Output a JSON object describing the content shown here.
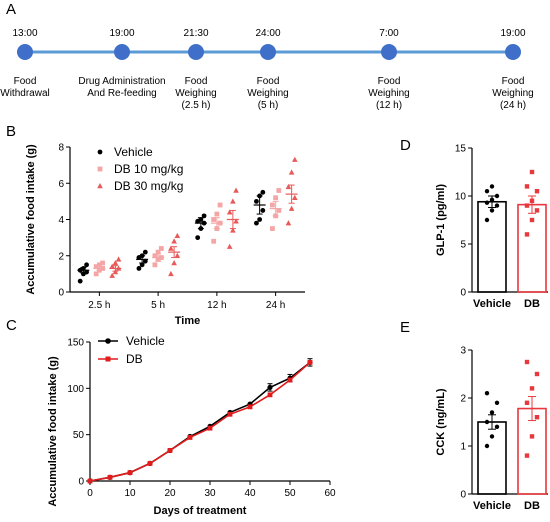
{
  "panels": {
    "A": "A",
    "B": "B",
    "C": "C",
    "D": "D",
    "E": "E"
  },
  "timeline": {
    "events": [
      {
        "time": "13:00",
        "lines": [
          "Food",
          "Withdrawal"
        ]
      },
      {
        "time": "19:00",
        "lines": [
          "Drug Administration",
          "And Re-feeding"
        ]
      },
      {
        "time": "21:30",
        "lines": [
          "Food",
          "Weighing",
          "(2.5 h)"
        ]
      },
      {
        "time": "24:00",
        "lines": [
          "Food",
          "Weighing",
          "(5 h)"
        ]
      },
      {
        "time": "7:00",
        "lines": [
          "Food",
          "Weighing",
          "(12 h)"
        ]
      },
      {
        "time": "19:00",
        "lines": [
          "Food",
          "Weighing",
          "(24 h)"
        ]
      }
    ],
    "colors": {
      "line": "#5b9bd5",
      "node": "#3f6fc8"
    }
  },
  "chart_data": [
    {
      "type": "scatter",
      "panel": "B",
      "ylabel": "Accumulative food intake (g)",
      "xlabel": "Time",
      "categories": [
        "2.5 h",
        "5 h",
        "12 h",
        "24 h"
      ],
      "ylim": [
        0,
        8
      ],
      "yticks": [
        0,
        2,
        4,
        6,
        8
      ],
      "legend_position": "top-left",
      "series": [
        {
          "name": "Vehicle",
          "color": "#000000",
          "marker": "circle",
          "means": [
            1.2,
            1.8,
            3.8,
            4.8
          ],
          "sem": [
            0.15,
            0.2,
            0.3,
            0.5
          ],
          "points": [
            [
              0.6,
              1.0,
              1.1,
              1.2,
              1.3,
              1.5
            ],
            [
              1.3,
              1.5,
              1.7,
              1.9,
              2.0,
              2.2
            ],
            [
              3.0,
              3.5,
              3.8,
              3.9,
              4.0,
              4.2
            ],
            [
              3.8,
              4.0,
              4.5,
              5.0,
              5.3,
              5.5
            ]
          ]
        },
        {
          "name": "DB 10 mg/kg",
          "color": "#f4a6a6",
          "marker": "square",
          "means": [
            1.3,
            1.9,
            3.8,
            4.6
          ],
          "sem": [
            0.1,
            0.2,
            0.3,
            0.4
          ],
          "points": [
            [
              1.0,
              1.2,
              1.3,
              1.4,
              1.5,
              1.6
            ],
            [
              1.5,
              1.8,
              1.9,
              2.0,
              2.2,
              2.4
            ],
            [
              2.8,
              3.5,
              3.8,
              4.0,
              4.3,
              4.8
            ],
            [
              3.5,
              4.2,
              4.5,
              4.8,
              5.2,
              5.6
            ]
          ]
        },
        {
          "name": "DB 30 mg/kg",
          "color": "#e85a5a",
          "marker": "triangle",
          "means": [
            1.3,
            2.2,
            4.0,
            5.4
          ],
          "sem": [
            0.15,
            0.3,
            0.5,
            0.5
          ],
          "points": [
            [
              0.9,
              1.1,
              1.3,
              1.4,
              1.6,
              1.8
            ],
            [
              1.0,
              1.6,
              2.0,
              2.4,
              2.8,
              3.1
            ],
            [
              2.5,
              3.4,
              3.9,
              4.4,
              5.0,
              5.6
            ],
            [
              3.8,
              4.6,
              5.2,
              5.8,
              6.6,
              7.3
            ]
          ]
        }
      ]
    },
    {
      "type": "line",
      "panel": "C",
      "ylabel": "Accumulative food intake (g)",
      "xlabel": "Days of treatment",
      "xlim": [
        0,
        60
      ],
      "ylim": [
        0,
        150
      ],
      "xticks": [
        0,
        10,
        20,
        30,
        40,
        50,
        60
      ],
      "yticks": [
        0,
        50,
        100,
        150
      ],
      "legend_position": "top-left",
      "x": [
        0,
        5,
        10,
        15,
        20,
        25,
        30,
        35,
        40,
        45,
        50,
        55
      ],
      "series": [
        {
          "name": "Vehicle",
          "color": "#000000",
          "values": [
            0,
            4,
            9,
            19,
            33,
            48,
            59,
            74,
            83,
            101,
            111,
            128
          ]
        },
        {
          "name": "DB",
          "color": "#e21c1c",
          "values": [
            0,
            4,
            9,
            19,
            33,
            47,
            57,
            72,
            80,
            93,
            109,
            128
          ]
        }
      ]
    },
    {
      "type": "bar",
      "panel": "D",
      "ylabel": "GLP-1 (pg/ml)",
      "categories": [
        "Vehicle",
        "DB"
      ],
      "ylim": [
        0,
        15
      ],
      "yticks": [
        0,
        5,
        10,
        15
      ],
      "values": [
        9.4,
        9.1
      ],
      "sem": [
        0.6,
        0.9
      ],
      "colors": [
        "#000000",
        "#e8383d"
      ],
      "points": [
        [
          7.5,
          8.5,
          9.0,
          9.3,
          9.6,
          10.0,
          10.5,
          11.0
        ],
        [
          6.0,
          7.5,
          8.5,
          9.0,
          9.5,
          10.5,
          11.0,
          12.5
        ]
      ]
    },
    {
      "type": "bar",
      "panel": "E",
      "ylabel": "CCK (ng/mL)",
      "categories": [
        "Vehicle",
        "DB"
      ],
      "ylim": [
        0,
        3
      ],
      "yticks": [
        0,
        1,
        2,
        3
      ],
      "values": [
        1.5,
        1.78
      ],
      "sem": [
        0.15,
        0.25
      ],
      "colors": [
        "#000000",
        "#e8383d"
      ],
      "points": [
        [
          1.0,
          1.2,
          1.4,
          1.5,
          1.7,
          1.9,
          2.1
        ],
        [
          0.8,
          1.2,
          1.6,
          1.9,
          2.2,
          2.5,
          2.75
        ]
      ]
    }
  ]
}
